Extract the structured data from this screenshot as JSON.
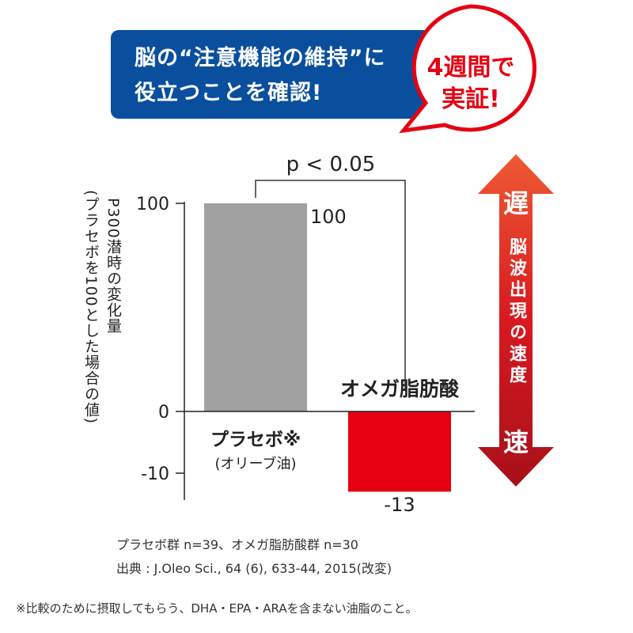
{
  "banner": {
    "line1": "脳の“注意機能の維持”に",
    "line2": "役立つことを確認!"
  },
  "bubble": {
    "line1": "4週間で",
    "line2": "実証!"
  },
  "speed_arrow": {
    "top": "遅",
    "bottom": "速",
    "label": "脳波出現の速度"
  },
  "chart_data": {
    "type": "bar",
    "categories": [
      "プラセボ※",
      "オメガ脂肪酸"
    ],
    "category_sublabels": [
      "(オリーブ油)",
      ""
    ],
    "values": [
      100,
      -13
    ],
    "data_labels": [
      "100",
      "-13"
    ],
    "colors": [
      "#a0a0a0",
      "#e60012"
    ],
    "ylabel": "P300潜時の変化量",
    "ylabel_sub": "(プラセボを100とした場合の値)",
    "yticks": [
      "100",
      "0",
      "-10"
    ],
    "ylim": [
      -15,
      100
    ],
    "significance": "p < 0.05"
  },
  "notes": {
    "n": "プラセボ群 n=39、オメガ脂肪酸群 n=30",
    "source": "出典 : J.Oleo Sci., 64 (6), 633-44, 2015(改変)",
    "footnote": "※比較のために摂取してもらう、DHA・EPA・ARAを含まない油脂のこと。"
  }
}
